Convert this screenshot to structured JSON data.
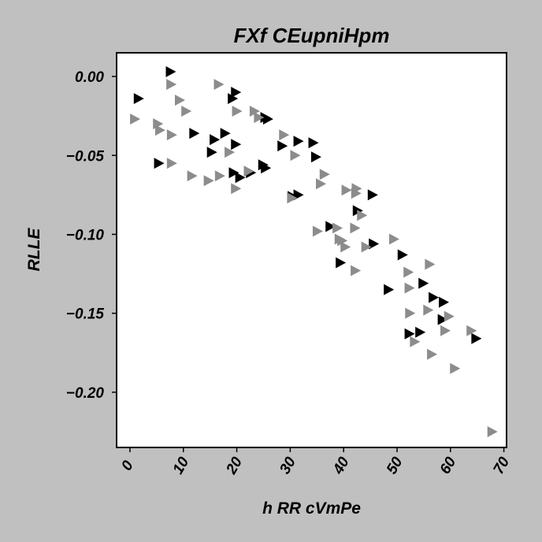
{
  "chart_data": {
    "type": "scatter",
    "title": "FXf CEupniHpm",
    "xlabel": "h RR cVmPe",
    "ylabel": "RLLE",
    "xlim": [
      -2.5,
      70.5
    ],
    "ylim": [
      -0.235,
      0.015
    ],
    "xticks": [
      0,
      10,
      20,
      30,
      40,
      50,
      60,
      70
    ],
    "yticks": [
      0.0,
      -0.05,
      -0.1,
      -0.15,
      -0.2
    ],
    "xtick_labels": [
      "0",
      "10",
      "20",
      "30",
      "40",
      "50",
      "60",
      "70"
    ],
    "ytick_labels": [
      "0.00",
      "−0.05",
      "−0.10",
      "−0.15",
      "−0.20"
    ],
    "grid": false,
    "marker": "triangle-right",
    "series": [
      {
        "color": "#000000",
        "points": [
          [
            7.6,
            0.003
          ],
          [
            1.6,
            -0.014
          ],
          [
            19.8,
            -0.01
          ],
          [
            19.2,
            -0.014
          ],
          [
            25.3,
            -0.026
          ],
          [
            25.8,
            -0.027
          ],
          [
            17.8,
            -0.036
          ],
          [
            12.0,
            -0.036
          ],
          [
            15.8,
            -0.04
          ],
          [
            31.5,
            -0.041
          ],
          [
            34.3,
            -0.042
          ],
          [
            28.5,
            -0.044
          ],
          [
            19.8,
            -0.043
          ],
          [
            15.3,
            -0.048
          ],
          [
            34.8,
            -0.051
          ],
          [
            5.4,
            -0.055
          ],
          [
            24.9,
            -0.056
          ],
          [
            25.4,
            -0.058
          ],
          [
            19.4,
            -0.061
          ],
          [
            22.6,
            -0.061
          ],
          [
            20.6,
            -0.064
          ],
          [
            31.5,
            -0.075
          ],
          [
            30.4,
            -0.076
          ],
          [
            45.4,
            -0.075
          ],
          [
            42.6,
            -0.085
          ],
          [
            37.5,
            -0.095
          ],
          [
            45.6,
            -0.106
          ],
          [
            39.4,
            -0.118
          ],
          [
            51.0,
            -0.113
          ],
          [
            48.4,
            -0.135
          ],
          [
            54.9,
            -0.131
          ],
          [
            56.8,
            -0.14
          ],
          [
            58.7,
            -0.143
          ],
          [
            58.5,
            -0.154
          ],
          [
            52.3,
            -0.163
          ],
          [
            54.3,
            -0.162
          ],
          [
            64.8,
            -0.166
          ]
        ]
      },
      {
        "color": "#8c8c8c",
        "points": [
          [
            0.9,
            -0.027
          ],
          [
            7.7,
            -0.005
          ],
          [
            16.6,
            -0.005
          ],
          [
            9.3,
            -0.015
          ],
          [
            10.5,
            -0.022
          ],
          [
            20.0,
            -0.022
          ],
          [
            23.3,
            -0.022
          ],
          [
            24.1,
            -0.026
          ],
          [
            5.2,
            -0.03
          ],
          [
            5.6,
            -0.034
          ],
          [
            7.8,
            -0.037
          ],
          [
            18.6,
            -0.048
          ],
          [
            28.8,
            -0.037
          ],
          [
            30.9,
            -0.05
          ],
          [
            7.8,
            -0.055
          ],
          [
            16.8,
            -0.063
          ],
          [
            11.6,
            -0.063
          ],
          [
            14.7,
            -0.066
          ],
          [
            19.8,
            -0.071
          ],
          [
            22.2,
            -0.06
          ],
          [
            36.4,
            -0.062
          ],
          [
            35.7,
            -0.068
          ],
          [
            40.5,
            -0.072
          ],
          [
            42.4,
            -0.071
          ],
          [
            42.3,
            -0.074
          ],
          [
            43.4,
            -0.088
          ],
          [
            30.3,
            -0.077
          ],
          [
            35.1,
            -0.098
          ],
          [
            38.8,
            -0.096
          ],
          [
            42.1,
            -0.096
          ],
          [
            39.2,
            -0.103
          ],
          [
            39.7,
            -0.104
          ],
          [
            40.3,
            -0.108
          ],
          [
            44.2,
            -0.108
          ],
          [
            42.2,
            -0.123
          ],
          [
            49.4,
            -0.103
          ],
          [
            52.1,
            -0.124
          ],
          [
            52.3,
            -0.134
          ],
          [
            56.1,
            -0.119
          ],
          [
            52.4,
            -0.15
          ],
          [
            55.8,
            -0.148
          ],
          [
            59.7,
            -0.152
          ],
          [
            53.3,
            -0.168
          ],
          [
            59.0,
            -0.161
          ],
          [
            63.9,
            -0.161
          ],
          [
            56.5,
            -0.176
          ],
          [
            60.8,
            -0.185
          ],
          [
            67.8,
            -0.225
          ]
        ]
      }
    ]
  }
}
